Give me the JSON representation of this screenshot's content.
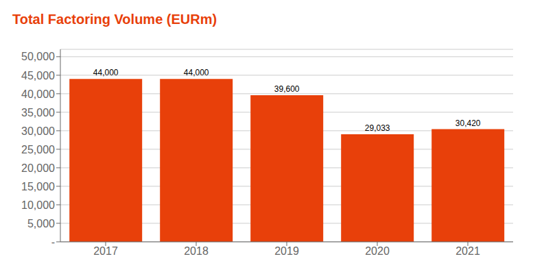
{
  "chart_data": {
    "type": "bar",
    "title": "Total Factoring Volume (EURm)",
    "categories": [
      "2017",
      "2018",
      "2019",
      "2020",
      "2021"
    ],
    "values": [
      44000,
      44000,
      39600,
      29033,
      30420
    ],
    "value_labels": [
      "44,000",
      "44,000",
      "39,600",
      "29,033",
      "30,420"
    ],
    "color": "#E8400A",
    "ylim": [
      0,
      52000
    ],
    "yticks": [
      {
        "value": 0,
        "label": "-"
      },
      {
        "value": 5000,
        "label": "5,000"
      },
      {
        "value": 10000,
        "label": "10,000"
      },
      {
        "value": 15000,
        "label": "15,000"
      },
      {
        "value": 20000,
        "label": "20,000"
      },
      {
        "value": 25000,
        "label": "25,000"
      },
      {
        "value": 30000,
        "label": "30,000"
      },
      {
        "value": 35000,
        "label": "35,000"
      },
      {
        "value": 40000,
        "label": "40,000"
      },
      {
        "value": 45000,
        "label": "45,000"
      },
      {
        "value": 50000,
        "label": "50,000"
      }
    ],
    "grid": true,
    "data_labels": true
  }
}
